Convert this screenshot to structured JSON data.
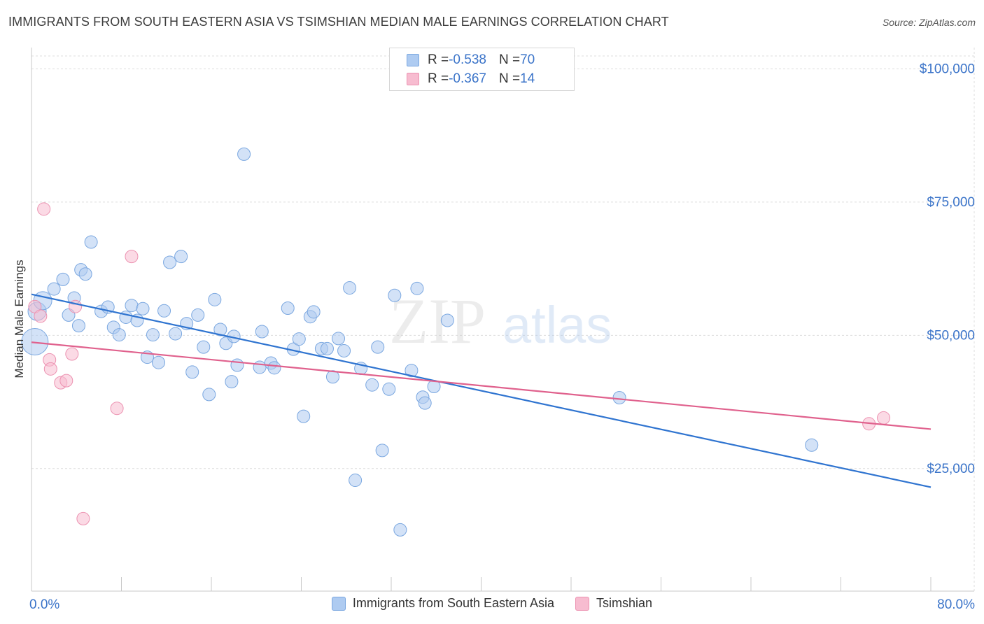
{
  "header": {
    "title": "IMMIGRANTS FROM SOUTH EASTERN ASIA VS TSIMSHIAN MEDIAN MALE EARNINGS CORRELATION CHART",
    "source": "Source: ZipAtlas.com"
  },
  "watermark": {
    "zip": "ZIP",
    "atlas": "atlas"
  },
  "stats_legend": [
    {
      "r_label": "R = ",
      "r_value": "-0.538",
      "n_label": "N = ",
      "n_value": "70",
      "color": "#aecbf1"
    },
    {
      "r_label": "R = ",
      "r_value": "-0.367",
      "n_label": "N = ",
      "n_value": "14",
      "color": "#f7bcd0"
    }
  ],
  "colors": {
    "blue_fill": "#aecbf1",
    "blue_stroke": "#7aa7e0",
    "blue_line": "#2f74d0",
    "pink_fill": "#f7bcd0",
    "pink_stroke": "#ec92b1",
    "pink_line": "#e0618d",
    "tick_label": "#3b74c9"
  },
  "chart_data": {
    "type": "scatter",
    "title": "IMMIGRANTS FROM SOUTH EASTERN ASIA VS TSIMSHIAN MEDIAN MALE EARNINGS CORRELATION CHART",
    "xlabel": "",
    "ylabel": "Median Male Earnings",
    "xlim": [
      0,
      80
    ],
    "ylim": [
      2000,
      104000
    ],
    "x_tick_labels": [
      "0.0%",
      "80.0%"
    ],
    "y_ticks": [
      25000,
      50000,
      75000,
      100000
    ],
    "y_tick_labels": [
      "$25,000",
      "$50,000",
      "$75,000",
      "$100,000"
    ],
    "grid": true,
    "legend_position": "bottom",
    "series": [
      {
        "name": "Immigrants from South Eastern Asia",
        "color": "#aecbf1",
        "trend": {
          "x": [
            0,
            80
          ],
          "y": [
            57700,
            21500
          ]
        },
        "points": [
          {
            "x": 0.3,
            "y": 48800,
            "s": 3
          },
          {
            "x": 0.5,
            "y": 54500,
            "s": 2
          },
          {
            "x": 1.0,
            "y": 56500,
            "s": 2
          },
          {
            "x": 2.0,
            "y": 58700,
            "s": 1
          },
          {
            "x": 2.8,
            "y": 60500,
            "s": 1
          },
          {
            "x": 3.3,
            "y": 53800,
            "s": 1
          },
          {
            "x": 3.8,
            "y": 57000,
            "s": 1
          },
          {
            "x": 4.2,
            "y": 51800,
            "s": 1
          },
          {
            "x": 4.4,
            "y": 62300,
            "s": 1
          },
          {
            "x": 4.8,
            "y": 61500,
            "s": 1
          },
          {
            "x": 5.3,
            "y": 67500,
            "s": 1
          },
          {
            "x": 6.2,
            "y": 54500,
            "s": 1
          },
          {
            "x": 6.8,
            "y": 55300,
            "s": 1
          },
          {
            "x": 7.3,
            "y": 51500,
            "s": 1
          },
          {
            "x": 7.8,
            "y": 50100,
            "s": 1
          },
          {
            "x": 8.4,
            "y": 53400,
            "s": 1
          },
          {
            "x": 8.9,
            "y": 55600,
            "s": 1
          },
          {
            "x": 9.4,
            "y": 52800,
            "s": 1
          },
          {
            "x": 9.9,
            "y": 55000,
            "s": 1
          },
          {
            "x": 10.3,
            "y": 45900,
            "s": 1
          },
          {
            "x": 10.8,
            "y": 50100,
            "s": 1
          },
          {
            "x": 11.3,
            "y": 44900,
            "s": 1
          },
          {
            "x": 11.8,
            "y": 54600,
            "s": 1
          },
          {
            "x": 12.3,
            "y": 63700,
            "s": 1
          },
          {
            "x": 12.8,
            "y": 50300,
            "s": 1
          },
          {
            "x": 13.3,
            "y": 64800,
            "s": 1
          },
          {
            "x": 13.8,
            "y": 52200,
            "s": 1
          },
          {
            "x": 14.3,
            "y": 43100,
            "s": 1
          },
          {
            "x": 14.8,
            "y": 53800,
            "s": 1
          },
          {
            "x": 15.3,
            "y": 47800,
            "s": 1
          },
          {
            "x": 15.8,
            "y": 38900,
            "s": 1
          },
          {
            "x": 16.3,
            "y": 56700,
            "s": 1
          },
          {
            "x": 16.8,
            "y": 51100,
            "s": 1
          },
          {
            "x": 17.3,
            "y": 48500,
            "s": 1
          },
          {
            "x": 17.8,
            "y": 41300,
            "s": 1
          },
          {
            "x": 18.3,
            "y": 44400,
            "s": 1
          },
          {
            "x": 18.9,
            "y": 84000,
            "s": 1
          },
          {
            "x": 20.3,
            "y": 44000,
            "s": 1
          },
          {
            "x": 20.5,
            "y": 50700,
            "s": 1
          },
          {
            "x": 21.3,
            "y": 44800,
            "s": 1
          },
          {
            "x": 21.6,
            "y": 43900,
            "s": 1
          },
          {
            "x": 22.8,
            "y": 55100,
            "s": 1
          },
          {
            "x": 23.3,
            "y": 47400,
            "s": 1
          },
          {
            "x": 23.8,
            "y": 49300,
            "s": 1
          },
          {
            "x": 24.2,
            "y": 34800,
            "s": 1
          },
          {
            "x": 24.8,
            "y": 53500,
            "s": 1
          },
          {
            "x": 25.1,
            "y": 54400,
            "s": 1
          },
          {
            "x": 25.8,
            "y": 47500,
            "s": 1
          },
          {
            "x": 26.3,
            "y": 47500,
            "s": 1
          },
          {
            "x": 26.8,
            "y": 42200,
            "s": 1
          },
          {
            "x": 27.3,
            "y": 49400,
            "s": 1
          },
          {
            "x": 27.8,
            "y": 47100,
            "s": 1
          },
          {
            "x": 28.3,
            "y": 58900,
            "s": 1
          },
          {
            "x": 28.8,
            "y": 22800,
            "s": 1
          },
          {
            "x": 29.3,
            "y": 43800,
            "s": 1
          },
          {
            "x": 30.3,
            "y": 40700,
            "s": 1
          },
          {
            "x": 30.8,
            "y": 47800,
            "s": 1
          },
          {
            "x": 31.2,
            "y": 28400,
            "s": 1
          },
          {
            "x": 31.8,
            "y": 39900,
            "s": 1
          },
          {
            "x": 32.3,
            "y": 57500,
            "s": 1
          },
          {
            "x": 32.8,
            "y": 13500,
            "s": 1
          },
          {
            "x": 33.8,
            "y": 43400,
            "s": 1
          },
          {
            "x": 34.3,
            "y": 58800,
            "s": 1
          },
          {
            "x": 34.8,
            "y": 38400,
            "s": 1
          },
          {
            "x": 35.0,
            "y": 37300,
            "s": 1
          },
          {
            "x": 35.8,
            "y": 40400,
            "s": 1
          },
          {
            "x": 37.0,
            "y": 52800,
            "s": 1
          },
          {
            "x": 52.3,
            "y": 38300,
            "s": 1
          },
          {
            "x": 69.4,
            "y": 29400,
            "s": 1
          },
          {
            "x": 18.0,
            "y": 49800,
            "s": 0
          }
        ]
      },
      {
        "name": "Tsimshian",
        "color": "#f7bcd0",
        "trend": {
          "x": [
            0,
            80
          ],
          "y": [
            48700,
            32400
          ]
        },
        "points": [
          {
            "x": 0.3,
            "y": 55400,
            "s": 1
          },
          {
            "x": 0.8,
            "y": 53600,
            "s": 1
          },
          {
            "x": 1.1,
            "y": 73700,
            "s": 1
          },
          {
            "x": 1.6,
            "y": 45400,
            "s": 1
          },
          {
            "x": 1.7,
            "y": 43700,
            "s": 1
          },
          {
            "x": 2.6,
            "y": 41100,
            "s": 1
          },
          {
            "x": 3.1,
            "y": 41500,
            "s": 1
          },
          {
            "x": 3.6,
            "y": 46500,
            "s": 1
          },
          {
            "x": 3.9,
            "y": 55400,
            "s": 1
          },
          {
            "x": 4.6,
            "y": 15600,
            "s": 1
          },
          {
            "x": 7.6,
            "y": 36300,
            "s": 1
          },
          {
            "x": 8.9,
            "y": 64800,
            "s": 1
          },
          {
            "x": 74.5,
            "y": 33400,
            "s": 1
          },
          {
            "x": 75.8,
            "y": 34500,
            "s": 1
          }
        ]
      }
    ]
  }
}
